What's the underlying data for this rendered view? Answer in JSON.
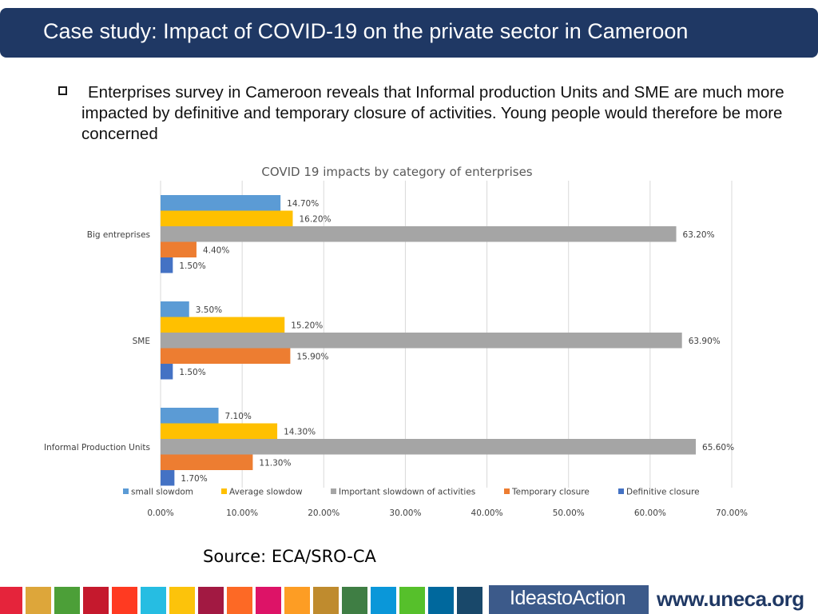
{
  "header": {
    "title": "Case study: Impact of COVID-19 on the private sector in Cameroon"
  },
  "bullet": {
    "text": "Enterprises survey in Cameroon reveals that Informal production Units and SME are much more impacted by definitive and temporary closure of activities. Young people would therefore be more concerned"
  },
  "chart_data": {
    "type": "bar",
    "orientation": "horizontal",
    "title": "COVID 19 impacts by category of enterprises",
    "categories": [
      "Big entreprises",
      "SME",
      "Informal Production Units"
    ],
    "series": [
      {
        "name": "small slowdom",
        "color": "#5b9bd5",
        "values": [
          14.7,
          3.5,
          7.1
        ],
        "labels": [
          "14.70%",
          "3.50%",
          "7.10%"
        ]
      },
      {
        "name": "Average slowdow",
        "color": "#ffc000",
        "values": [
          16.2,
          15.2,
          14.3
        ],
        "labels": [
          "16.20%",
          "15.20%",
          "14.30%"
        ]
      },
      {
        "name": "Important slowdown of activities",
        "color": "#a5a5a5",
        "values": [
          63.2,
          63.9,
          65.6
        ],
        "labels": [
          "63.20%",
          "63.90%",
          "65.60%"
        ]
      },
      {
        "name": "Temporary closure",
        "color": "#ed7d31",
        "values": [
          4.4,
          15.9,
          11.3
        ],
        "labels": [
          "4.40%",
          "15.90%",
          "11.30%"
        ]
      },
      {
        "name": "Definitive closure",
        "color": "#4472c4",
        "values": [
          1.5,
          1.5,
          1.7
        ],
        "labels": [
          "1.50%",
          "1.50%",
          "1.70%"
        ]
      }
    ],
    "xlim": [
      0,
      70
    ],
    "xticks": [
      0,
      10,
      20,
      30,
      40,
      50,
      60,
      70
    ],
    "xtick_labels": [
      "0.00%",
      "10.00%",
      "20.00%",
      "30.00%",
      "40.00%",
      "50.00%",
      "60.00%",
      "70.00%"
    ],
    "grid": true,
    "legend": "bottom"
  },
  "source": {
    "text": "Source: ECA/SRO-CA"
  },
  "footer": {
    "sdg_colors": [
      "#e5243b",
      "#dda63a",
      "#4c9f38",
      "#c5192d",
      "#ff3a21",
      "#26bde2",
      "#fcc30b",
      "#a21942",
      "#fd6925",
      "#dd1367",
      "#fd9d24",
      "#bf8b2e",
      "#3f7e44",
      "#0a97d9",
      "#56c02b",
      "#00689d",
      "#19486a"
    ],
    "logo_text": "IdeastoAction",
    "url": "www.uneca.org"
  }
}
